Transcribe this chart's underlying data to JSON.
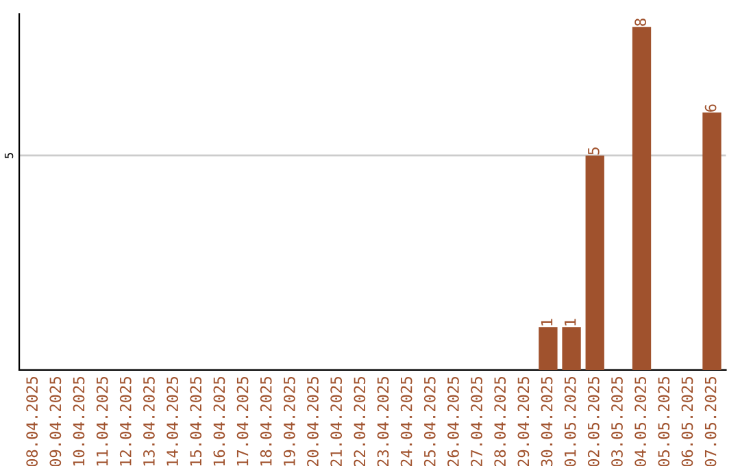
{
  "chart_data": {
    "type": "bar",
    "categories": [
      "08.04.2025",
      "09.04.2025",
      "10.04.2025",
      "11.04.2025",
      "12.04.2025",
      "13.04.2025",
      "14.04.2025",
      "15.04.2025",
      "16.04.2025",
      "17.04.2025",
      "18.04.2025",
      "19.04.2025",
      "20.04.2025",
      "21.04.2025",
      "22.04.2025",
      "23.04.2025",
      "24.04.2025",
      "25.04.2025",
      "26.04.2025",
      "27.04.2025",
      "28.04.2025",
      "29.04.2025",
      "30.04.2025",
      "01.05.2025",
      "02.05.2025",
      "03.05.2025",
      "04.05.2025",
      "05.05.2025",
      "06.05.2025",
      "07.05.2025"
    ],
    "values": [
      null,
      null,
      null,
      null,
      null,
      null,
      null,
      null,
      null,
      null,
      null,
      null,
      null,
      null,
      null,
      null,
      null,
      null,
      null,
      null,
      null,
      null,
      1,
      1,
      5,
      null,
      8,
      null,
      null,
      6
    ],
    "value_labels": [
      null,
      null,
      null,
      null,
      null,
      null,
      null,
      null,
      null,
      null,
      null,
      null,
      null,
      null,
      null,
      null,
      null,
      null,
      null,
      null,
      null,
      null,
      "1",
      "1",
      "5",
      null,
      "8",
      null,
      null,
      "6"
    ],
    "color": "#a0522d",
    "ylim": [
      0,
      8.3
    ],
    "yticks": [
      5
    ],
    "grid": "y",
    "legend": false
  }
}
